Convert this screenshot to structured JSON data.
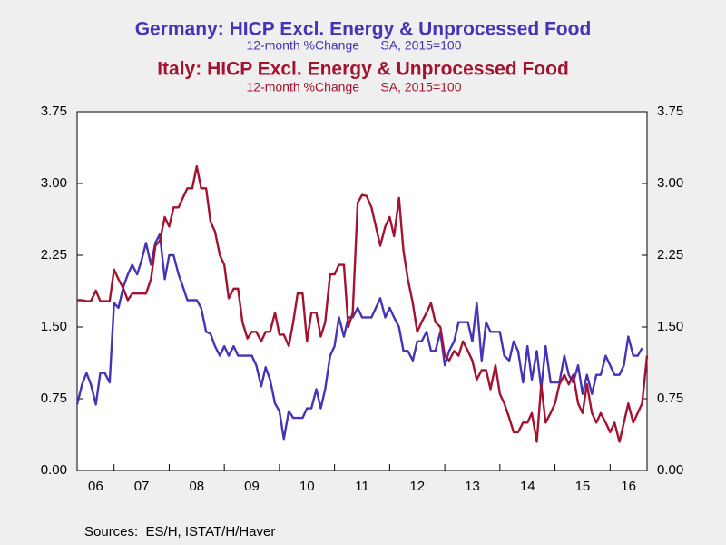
{
  "chart_data": {
    "type": "line",
    "source": "Sources:  ES/H, ISTAT/H/Haver",
    "x": [
      2006.33,
      2006.42,
      2006.5,
      2006.58,
      2006.67,
      2006.75,
      2006.83,
      2006.92,
      2007.0,
      2007.08,
      2007.17,
      2007.25,
      2007.33,
      2007.42,
      2007.5,
      2007.58,
      2007.67,
      2007.75,
      2007.83,
      2007.92,
      2008.0,
      2008.08,
      2008.17,
      2008.25,
      2008.33,
      2008.42,
      2008.5,
      2008.58,
      2008.67,
      2008.75,
      2008.83,
      2008.92,
      2009.0,
      2009.08,
      2009.17,
      2009.25,
      2009.33,
      2009.42,
      2009.5,
      2009.58,
      2009.67,
      2009.75,
      2009.83,
      2009.92,
      2010.0,
      2010.08,
      2010.17,
      2010.25,
      2010.33,
      2010.42,
      2010.5,
      2010.58,
      2010.67,
      2010.75,
      2010.83,
      2010.92,
      2011.0,
      2011.08,
      2011.17,
      2011.25,
      2011.33,
      2011.42,
      2011.5,
      2011.58,
      2011.67,
      2011.75,
      2011.83,
      2011.92,
      2012.0,
      2012.08,
      2012.17,
      2012.25,
      2012.33,
      2012.42,
      2012.5,
      2012.58,
      2012.67,
      2012.75,
      2012.83,
      2012.92,
      2013.0,
      2013.08,
      2013.17,
      2013.25,
      2013.33,
      2013.42,
      2013.5,
      2013.58,
      2013.67,
      2013.75,
      2013.83,
      2013.92,
      2014.0,
      2014.08,
      2014.17,
      2014.25,
      2014.33,
      2014.42,
      2014.5,
      2014.58,
      2014.67,
      2014.75,
      2014.83,
      2014.92,
      2015.0,
      2015.08,
      2015.17,
      2015.25,
      2015.33,
      2015.42,
      2015.5,
      2015.58,
      2015.67,
      2015.75,
      2015.83,
      2015.92,
      2016.0,
      2016.08,
      2016.17,
      2016.25,
      2016.33,
      2016.42,
      2016.5,
      2016.58,
      2016.67
    ],
    "series": [
      {
        "name": "Germany: HICP Excl. Energy & Unprocessed Food",
        "subtitle": "12-month %Change      SA, 2015=100",
        "color": "#4633b8",
        "values": [
          0.69,
          0.9,
          1.02,
          0.9,
          0.69,
          1.02,
          1.02,
          0.92,
          1.75,
          1.7,
          1.92,
          2.05,
          2.15,
          2.05,
          2.2,
          2.38,
          2.15,
          2.38,
          2.47,
          2.0,
          2.25,
          2.25,
          2.05,
          1.92,
          1.78,
          1.78,
          1.78,
          1.7,
          1.45,
          1.43,
          1.3,
          1.2,
          1.3,
          1.2,
          1.3,
          1.2,
          1.2,
          1.2,
          1.2,
          1.1,
          0.88,
          1.08,
          0.95,
          0.7,
          0.62,
          0.33,
          0.62,
          0.55,
          0.55,
          0.55,
          0.65,
          0.65,
          0.85,
          0.65,
          0.85,
          1.2,
          1.3,
          1.6,
          1.4,
          1.6,
          1.6,
          1.7,
          1.6,
          1.6,
          1.6,
          1.7,
          1.8,
          1.6,
          1.7,
          1.6,
          1.5,
          1.25,
          1.25,
          1.15,
          1.35,
          1.35,
          1.45,
          1.25,
          1.25,
          1.45,
          1.1,
          1.25,
          1.35,
          1.55,
          1.55,
          1.55,
          1.35,
          1.75,
          1.15,
          1.55,
          1.45,
          1.45,
          1.45,
          1.2,
          1.15,
          1.35,
          1.25,
          0.92,
          1.3,
          0.95,
          1.25,
          0.85,
          1.3,
          0.92,
          0.92,
          0.92,
          1.2,
          1.0,
          0.92,
          1.1,
          0.8,
          1.0,
          0.8,
          1.0,
          1.0,
          1.2,
          1.1,
          1.0,
          1.0,
          1.1,
          1.4,
          1.2,
          1.2,
          1.28,
          null
        ]
      },
      {
        "name": "Italy: HICP Excl. Energy & Unprocessed Food",
        "subtitle": "12-month %Change      SA, 2015=100",
        "color": "#a3122e",
        "values": [
          1.78,
          1.78,
          1.77,
          1.77,
          1.88,
          1.77,
          1.77,
          1.77,
          2.1,
          2.0,
          1.9,
          1.78,
          1.85,
          1.85,
          1.85,
          1.85,
          2.0,
          2.35,
          2.4,
          2.65,
          2.55,
          2.75,
          2.75,
          2.85,
          2.95,
          2.95,
          3.18,
          2.95,
          2.95,
          2.6,
          2.5,
          2.25,
          2.15,
          1.8,
          1.9,
          1.9,
          1.55,
          1.38,
          1.45,
          1.45,
          1.35,
          1.45,
          1.45,
          1.65,
          1.42,
          1.42,
          1.3,
          1.55,
          1.85,
          1.85,
          1.35,
          1.65,
          1.65,
          1.4,
          1.55,
          2.05,
          2.05,
          2.15,
          2.15,
          1.5,
          1.65,
          2.8,
          2.88,
          2.87,
          2.75,
          2.55,
          2.35,
          2.55,
          2.65,
          2.45,
          2.85,
          2.3,
          2.0,
          1.75,
          1.45,
          1.55,
          1.65,
          1.75,
          1.55,
          1.5,
          1.2,
          1.15,
          1.25,
          1.2,
          1.35,
          1.25,
          1.15,
          0.95,
          1.05,
          1.05,
          0.85,
          1.1,
          0.8,
          0.7,
          0.55,
          0.4,
          0.4,
          0.5,
          0.5,
          0.6,
          0.3,
          0.9,
          0.5,
          0.6,
          0.7,
          0.9,
          1.0,
          0.9,
          1.0,
          0.7,
          0.6,
          0.9,
          0.6,
          0.5,
          0.6,
          0.5,
          0.4,
          0.5,
          0.3,
          0.5,
          0.7,
          0.5,
          0.6,
          0.7,
          1.2
        ]
      }
    ],
    "xlim": [
      2006.33,
      2016.67
    ],
    "xticks": [
      {
        "value": 2006,
        "label": "06"
      },
      {
        "value": 2007,
        "label": "07"
      },
      {
        "value": 2008,
        "label": "08"
      },
      {
        "value": 2009,
        "label": "09"
      },
      {
        "value": 2010,
        "label": "10"
      },
      {
        "value": 2011,
        "label": "11"
      },
      {
        "value": 2012,
        "label": "12"
      },
      {
        "value": 2013,
        "label": "13"
      },
      {
        "value": 2014,
        "label": "14"
      },
      {
        "value": 2015,
        "label": "15"
      },
      {
        "value": 2016,
        "label": "16"
      }
    ],
    "ylim": [
      0,
      3.75
    ],
    "yticks": [
      {
        "value": 0,
        "label": "0.00"
      },
      0.75,
      {
        "value": 1.5,
        "label": "1.50"
      },
      2.25,
      {
        "value": 3,
        "label": "3.00"
      },
      3.75
    ],
    "y2lim": [
      0,
      3.75
    ],
    "y2ticks": [
      {
        "value": 0,
        "label": "0.00"
      },
      0.75,
      {
        "value": 1.5,
        "label": "1.50"
      },
      2.25,
      {
        "value": 3,
        "label": "3.00"
      },
      3.75
    ]
  }
}
